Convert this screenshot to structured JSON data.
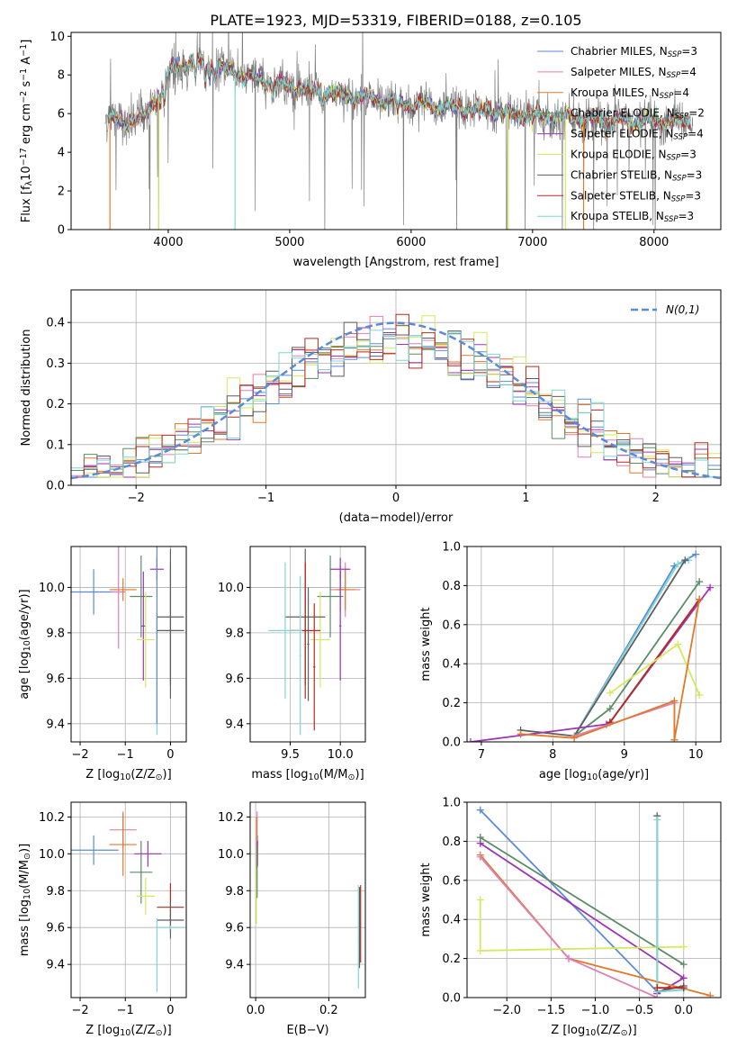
{
  "colors": {
    "Chabrier MILES": "#5b8bd8",
    "Salpeter MILES": "#e07fb6",
    "Kroupa MILES": "#e0792a",
    "Chabrier ELODIE": "#5a8c66",
    "Salpeter ELODIE": "#9a36b3",
    "Kroupa ELODIE": "#d6e85c",
    "Chabrier STELIB": "#5e5e5e",
    "Salpeter STELIB": "#b52a1f",
    "Kroupa STELIB": "#7fd6d3",
    "data": "#808080",
    "grid": "#b0b0b0"
  },
  "chart_data": [
    {
      "id": "spectrum",
      "type": "line",
      "title": "PLATE=1923, MJD=53319, FIBERID=0188, z=0.105",
      "xlabel": "wavelength [Angstrom, rest frame]",
      "ylabel": "Flux [f$_λ$10$^{-17}$ erg cm$^{-2}$ s$^{-1}$ A$^{-1}$]",
      "xlim": [
        3200,
        8550
      ],
      "ylim": [
        0,
        10.2
      ],
      "xticks": [
        "4000",
        "5000",
        "6000",
        "7000",
        "8000"
      ],
      "yticks": [
        "0",
        "2",
        "4",
        "6",
        "8",
        "10"
      ],
      "grid": false,
      "legend_position": "right",
      "legend": [
        {
          "name": "Chabrier MILES",
          "label": "Chabrier MILES, N",
          "sub": "SSP",
          "suffix": "=3"
        },
        {
          "name": "Salpeter MILES",
          "label": "Salpeter MILES, N",
          "sub": "SSP",
          "suffix": "=4"
        },
        {
          "name": "Kroupa MILES",
          "label": "Kroupa MILES, N",
          "sub": "SSP",
          "suffix": "=4"
        },
        {
          "name": "Chabrier ELODIE",
          "label": "Chabrier ELODIE, N",
          "sub": "SSP",
          "suffix": "=2"
        },
        {
          "name": "Salpeter ELODIE",
          "label": "Salpeter ELODIE, N",
          "sub": "SSP",
          "suffix": "=4"
        },
        {
          "name": "Kroupa ELODIE",
          "label": "Kroupa ELODIE, N",
          "sub": "SSP",
          "suffix": "=3"
        },
        {
          "name": "Chabrier STELIB",
          "label": "Chabrier STELIB, N",
          "sub": "SSP",
          "suffix": "=3"
        },
        {
          "name": "Salpeter STELIB",
          "label": "Salpeter STELIB, N",
          "sub": "SSP",
          "suffix": "=3"
        },
        {
          "name": "Kroupa STELIB",
          "label": "Kroupa STELIB, N",
          "sub": "SSP",
          "suffix": "=3"
        }
      ],
      "continuum": [
        [
          3500,
          5.8
        ],
        [
          3650,
          5.5
        ],
        [
          3800,
          5.8
        ],
        [
          3950,
          7.3
        ],
        [
          4050,
          8.5
        ],
        [
          4300,
          8.6
        ],
        [
          4600,
          8.0
        ],
        [
          5000,
          7.4
        ],
        [
          5500,
          6.9
        ],
        [
          6000,
          6.5
        ],
        [
          6500,
          6.2
        ],
        [
          7000,
          5.9
        ],
        [
          7500,
          5.7
        ],
        [
          8000,
          5.6
        ],
        [
          8300,
          5.6
        ]
      ],
      "line_features": [
        [
          3934,
          0.8
        ],
        [
          3968,
          1.0
        ],
        [
          4102,
          0.7
        ],
        [
          4226,
          0.6
        ],
        [
          4304,
          0.9
        ],
        [
          4340,
          0.6
        ],
        [
          4383,
          0.5
        ],
        [
          4861,
          0.5
        ],
        [
          5175,
          0.6
        ],
        [
          5270,
          0.4
        ],
        [
          5890,
          0.7
        ],
        [
          6563,
          0.5
        ],
        [
          7600,
          0.4
        ]
      ],
      "noise_sigma_scale": 0.9
    },
    {
      "id": "residuals",
      "type": "histogram",
      "xlabel": "(data-model)/error",
      "ylabel": "Normed distribution",
      "xlim": [
        -2.5,
        2.5
      ],
      "ylim": [
        0,
        0.48
      ],
      "xticks": [
        "−2",
        "−1",
        "0",
        "1",
        "2"
      ],
      "yticks": [
        "0.0",
        "0.1",
        "0.2",
        "0.3",
        "0.4"
      ],
      "grid": true,
      "legend_position": "top-right",
      "bin_width": 0.1,
      "gaussian": {
        "name": "N(0,1)",
        "mean": 0,
        "sigma": 1
      }
    },
    {
      "id": "age-vs-Z",
      "type": "errorbar",
      "xlabel": "Z [log$_{10}$(Z/Z$_⊙$)]",
      "ylabel": "age  [log$_{10}$(age/yr)]",
      "xlim": [
        -2.2,
        0.35
      ],
      "ylim": [
        9.32,
        10.18
      ],
      "xticks": [
        "−2",
        "−1",
        "0"
      ],
      "yticks": [
        "9.4",
        "9.6",
        "9.8",
        "10.0"
      ],
      "grid": true,
      "points": [
        {
          "s": "Chabrier MILES",
          "x": -1.7,
          "xerr": 0.55,
          "y": 9.98,
          "yerr": 0.1
        },
        {
          "s": "Salpeter MILES",
          "x": -1.15,
          "xerr": 0.15,
          "y": 9.98,
          "yerr": 0.25
        },
        {
          "s": "Kroupa MILES",
          "x": -1.05,
          "xerr": 0.3,
          "y": 9.99,
          "yerr": 0.05
        },
        {
          "s": "Chabrier ELODIE",
          "x": -0.65,
          "xerr": 0.25,
          "y": 9.96,
          "yerr": 0.18
        },
        {
          "s": "Salpeter ELODIE",
          "x": -0.3,
          "xerr": 0.15,
          "y": 10.08,
          "yerr": 0.05
        },
        {
          "s": "Salpeter ELODIE",
          "x": -0.6,
          "xerr": 0.05,
          "y": 9.83,
          "yerr": 0.24
        },
        {
          "s": "Kroupa ELODIE",
          "x": -0.55,
          "xerr": 0.2,
          "y": 9.77,
          "yerr": 0.21
        },
        {
          "s": "Chabrier STELIB",
          "x": 0.0,
          "xerr": 0.3,
          "y": 9.87,
          "yerr": 0.3
        },
        {
          "s": "Chabrier STELIB",
          "x": 0.0,
          "xerr": 0.3,
          "y": 9.81,
          "yerr": 0.3
        },
        {
          "s": "Kroupa STELIB",
          "x": -0.3,
          "xerr": 0.01,
          "y": 9.62,
          "yerr": 0.27
        },
        {
          "s": "Chabrier MILES",
          "x": -0.3,
          "xerr": 0.01,
          "y": 9.8,
          "yerr": 0.4
        }
      ]
    },
    {
      "id": "age-vs-mass",
      "type": "errorbar",
      "xlabel": "mass [log$_{10}$(M/M$_⊙$)]",
      "ylabel": "",
      "xlim": [
        9.1,
        10.25
      ],
      "ylim": [
        9.32,
        10.18
      ],
      "xticks": [
        "9.5",
        "10.0"
      ],
      "yticks": [
        "9.4",
        "9.6",
        "9.8",
        "10.0"
      ],
      "grid": true,
      "points": [
        {
          "s": "Chabrier MILES",
          "x": 10.0,
          "xerr": 0.02,
          "y": 9.99,
          "yerr": 0.1
        },
        {
          "s": "Salpeter MILES",
          "x": 10.05,
          "xerr": 0.15,
          "y": 9.99,
          "yerr": 0.12
        },
        {
          "s": "Kroupa MILES",
          "x": 10.05,
          "xerr": 0.1,
          "y": 9.99,
          "yerr": 0.09
        },
        {
          "s": "Chabrier ELODIE",
          "x": 9.9,
          "xerr": 0.13,
          "y": 9.96,
          "yerr": 0.18
        },
        {
          "s": "Salpeter ELODIE",
          "x": 10.0,
          "xerr": 0.1,
          "y": 10.08,
          "yerr": 0.05
        },
        {
          "s": "Salpeter ELODIE",
          "x": 10.0,
          "xerr": 0.01,
          "y": 9.83,
          "yerr": 0.24
        },
        {
          "s": "Kroupa ELODIE",
          "x": 9.8,
          "xerr": 0.1,
          "y": 9.77,
          "yerr": 0.21
        },
        {
          "s": "Chabrier STELIB",
          "x": 9.65,
          "xerr": 0.2,
          "y": 9.87,
          "yerr": 0.3
        },
        {
          "s": "Salpeter STELIB",
          "x": 9.65,
          "xerr": 0.15,
          "y": 9.81,
          "yerr": 0.3
        },
        {
          "s": "Kroupa STELIB",
          "x": 9.45,
          "xerr": 0.17,
          "y": 9.81,
          "yerr": 0.3
        },
        {
          "s": "Kroupa STELIB",
          "x": 9.6,
          "xerr": 0.01,
          "y": 9.7,
          "yerr": 0.35
        },
        {
          "s": "Salpeter STELIB",
          "x": 9.74,
          "xerr": 0.01,
          "y": 9.65,
          "yerr": 0.28
        },
        {
          "s": "Chabrier STELIB",
          "x": 9.68,
          "xerr": 0.01,
          "y": 9.75,
          "yerr": 0.25
        }
      ]
    },
    {
      "id": "massweight-vs-age",
      "type": "line",
      "xlabel": "age  [log$_{10}$(age/yr)]",
      "ylabel": "mass weight",
      "xlim": [
        6.8,
        10.35
      ],
      "ylim": [
        0,
        1.0
      ],
      "xticks": [
        "7",
        "8",
        "9",
        "10"
      ],
      "yticks": [
        "0.0",
        "0.2",
        "0.4",
        "0.6",
        "0.8",
        "1.0"
      ],
      "grid": true,
      "series": [
        {
          "s": "Chabrier MILES",
          "x": [
            8.3,
            9.7,
            10.0
          ],
          "y": [
            0.03,
            0.9,
            0.96
          ]
        },
        {
          "s": "Kroupa STELIB",
          "x": [
            8.3,
            9.75,
            9.9
          ],
          "y": [
            0.03,
            0.91,
            0.93
          ]
        },
        {
          "s": "Chabrier STELIB",
          "x": [
            7.55,
            8.3,
            9.85
          ],
          "y": [
            0.06,
            0.03,
            0.93
          ]
        },
        {
          "s": "Chabrier ELODIE",
          "x": [
            8.3,
            8.8,
            10.05
          ],
          "y": [
            0.03,
            0.17,
            0.82
          ]
        },
        {
          "s": "Salpeter ELODIE",
          "x": [
            6.85,
            8.75,
            8.8,
            10.2
          ],
          "y": [
            0.0,
            0.09,
            0.1,
            0.79
          ]
        },
        {
          "s": "Salpeter STELIB",
          "x": [
            8.8,
            10.05
          ],
          "y": [
            0.1,
            0.73
          ]
        },
        {
          "s": "Kroupa ELODIE",
          "x": [
            8.8,
            9.75,
            10.05
          ],
          "y": [
            0.25,
            0.5,
            0.24
          ]
        },
        {
          "s": "Salpeter MILES",
          "x": [
            8.3,
            9.7,
            9.7
          ],
          "y": [
            0.03,
            0.2,
            0.01
          ]
        },
        {
          "s": "Kroupa MILES",
          "x": [
            7.55,
            8.3,
            9.7,
            9.7,
            10.05
          ],
          "y": [
            0.04,
            0.02,
            0.21,
            0.01,
            0.73
          ]
        }
      ]
    },
    {
      "id": "mass-vs-Z",
      "type": "errorbar",
      "xlabel": "Z [log$_{10}$(Z/Z$_⊙$)]",
      "ylabel": "mass [log$_{10}$(M/M$_⊙$)]",
      "xlim": [
        -2.2,
        0.35
      ],
      "ylim": [
        9.22,
        10.28
      ],
      "xticks": [
        "−2",
        "−1",
        "0"
      ],
      "yticks": [
        "9.4",
        "9.6",
        "9.8",
        "10.0",
        "10.2"
      ],
      "grid": true,
      "points": [
        {
          "s": "Chabrier MILES",
          "x": -1.7,
          "xerr": 0.55,
          "y": 10.02,
          "yerr": 0.08
        },
        {
          "s": "Salpeter MILES",
          "x": -1.05,
          "xerr": 0.3,
          "y": 10.13,
          "yerr": 0.1
        },
        {
          "s": "Kroupa MILES",
          "x": -1.05,
          "xerr": 0.3,
          "y": 10.05,
          "yerr": 0.17
        },
        {
          "s": "Chabrier ELODIE",
          "x": -0.65,
          "xerr": 0.25,
          "y": 9.9,
          "yerr": 0.17
        },
        {
          "s": "Salpeter ELODIE",
          "x": -0.5,
          "xerr": 0.3,
          "y": 10.0,
          "yerr": 0.07
        },
        {
          "s": "Kroupa ELODIE",
          "x": -0.55,
          "xerr": 0.2,
          "y": 9.77,
          "yerr": 0.1
        },
        {
          "s": "Salpeter STELIB",
          "x": 0.0,
          "xerr": 0.3,
          "y": 9.71,
          "yerr": 0.13
        },
        {
          "s": "Chabrier STELIB",
          "x": 0.0,
          "xerr": 0.3,
          "y": 9.64,
          "yerr": 0.1
        },
        {
          "s": "Kroupa STELIB",
          "x": 0.0,
          "xerr": 0.3,
          "y": 9.6,
          "yerr": 0.01
        },
        {
          "s": "Kroupa STELIB",
          "x": -0.3,
          "xerr": 0.01,
          "y": 9.45,
          "yerr": 0.2
        }
      ]
    },
    {
      "id": "mass-vs-EBV",
      "type": "errorbar",
      "xlabel": "E(B-V)",
      "ylabel": "",
      "xlim": [
        -0.015,
        0.3
      ],
      "ylim": [
        9.22,
        10.28
      ],
      "xticks": [
        "0.0",
        "0.2"
      ],
      "yticks": [
        "9.4",
        "9.6",
        "9.8",
        "10.0",
        "10.2"
      ],
      "grid": true,
      "points": [
        {
          "s": "Chabrier MILES",
          "x": 0.005,
          "xerr": 0.001,
          "y": 10.02,
          "yerr": 0.08
        },
        {
          "s": "Salpeter MILES",
          "x": 0.004,
          "xerr": 0.001,
          "y": 10.13,
          "yerr": 0.1
        },
        {
          "s": "Kroupa MILES",
          "x": 0.003,
          "xerr": 0.001,
          "y": 10.05,
          "yerr": 0.15
        },
        {
          "s": "Salpeter ELODIE",
          "x": 0.005,
          "xerr": 0.001,
          "y": 10.0,
          "yerr": 0.07
        },
        {
          "s": "Kroupa ELODIE",
          "x": 0.002,
          "xerr": 0.001,
          "y": 9.77,
          "yerr": 0.15
        },
        {
          "s": "Chabrier ELODIE",
          "x": 0.004,
          "xerr": 0.001,
          "y": 9.9,
          "yerr": 0.14
        },
        {
          "s": "Salpeter STELIB",
          "x": 0.287,
          "xerr": 0.001,
          "y": 9.62,
          "yerr": 0.21
        },
        {
          "s": "Chabrier STELIB",
          "x": 0.284,
          "xerr": 0.001,
          "y": 9.6,
          "yerr": 0.22
        },
        {
          "s": "Kroupa STELIB",
          "x": 0.281,
          "xerr": 0.001,
          "y": 9.55,
          "yerr": 0.28
        }
      ]
    },
    {
      "id": "massweight-vs-Z",
      "type": "line",
      "xlabel": "Z [log$_{10}$(Z/Z$_⊙$)]",
      "ylabel": "mass weight",
      "xlim": [
        -2.45,
        0.42
      ],
      "ylim": [
        0,
        1.0
      ],
      "xticks": [
        "−2.0",
        "−1.5",
        "−1.0",
        "−0.5",
        "0.0"
      ],
      "yticks": [
        "0.0",
        "0.2",
        "0.4",
        "0.6",
        "0.8",
        "1.0"
      ],
      "grid": true,
      "series": [
        {
          "s": "Chabrier MILES",
          "x": [
            -2.3,
            -0.3,
            0.0
          ],
          "y": [
            0.96,
            0.03,
            0.04
          ]
        },
        {
          "s": "Chabrier ELODIE",
          "x": [
            -2.3,
            0.0
          ],
          "y": [
            0.82,
            0.17
          ]
        },
        {
          "s": "Salpeter ELODIE",
          "x": [
            -2.3,
            0.0,
            -0.3
          ],
          "y": [
            0.79,
            0.1,
            0.02
          ]
        },
        {
          "s": "Kroupa MILES",
          "x": [
            -2.3,
            -1.3,
            0.3
          ],
          "y": [
            0.73,
            0.2,
            0.01
          ]
        },
        {
          "s": "Salpeter MILES",
          "x": [
            -2.3,
            -1.3,
            -0.3
          ],
          "y": [
            0.72,
            0.2,
            0.0
          ]
        },
        {
          "s": "Kroupa ELODIE",
          "x": [
            -2.3,
            -2.3,
            0.0
          ],
          "y": [
            0.5,
            0.24,
            0.26
          ]
        },
        {
          "s": "Chabrier STELIB",
          "x": [
            -0.3,
            -0.3,
            0.0
          ],
          "y": [
            0.93,
            0.03,
            0.06
          ]
        },
        {
          "s": "Kroupa STELIB",
          "x": [
            -0.3,
            -0.3,
            0.0
          ],
          "y": [
            0.91,
            0.03,
            0.04
          ]
        },
        {
          "s": "Salpeter STELIB",
          "x": [
            -0.3,
            0.0
          ],
          "y": [
            0.05,
            0.05
          ]
        }
      ]
    }
  ]
}
